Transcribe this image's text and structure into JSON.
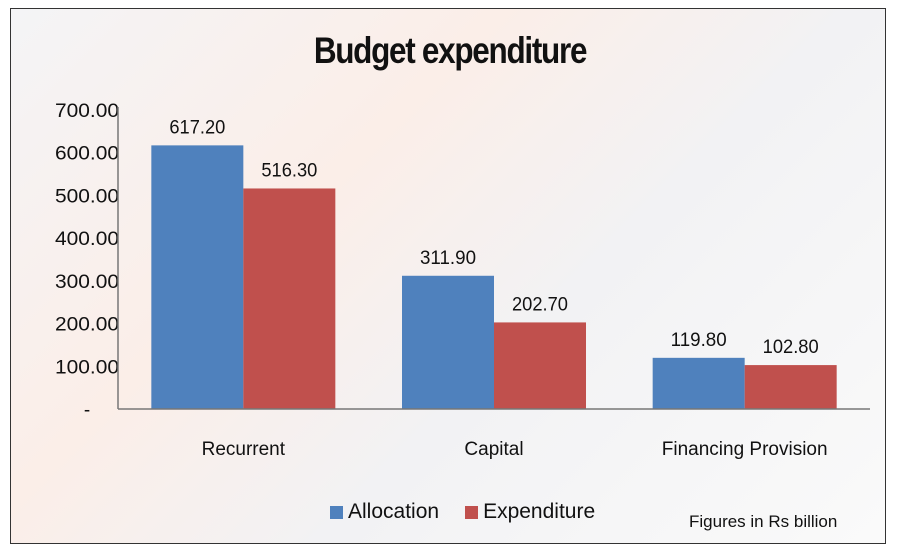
{
  "chart_data": {
    "type": "bar",
    "title": "Budget expenditure",
    "categories": [
      "Recurrent",
      "Capital",
      "Financing  Provision"
    ],
    "series": [
      {
        "name": "Allocation",
        "values": [
          617.2,
          311.9,
          119.8
        ],
        "color": "#4f81bd",
        "labels": [
          "617.20",
          "311.90",
          "119.80"
        ]
      },
      {
        "name": "Expenditure",
        "values": [
          516.3,
          202.7,
          102.8
        ],
        "color": "#c0504d",
        "labels": [
          "516.30",
          "202.70",
          "102.80"
        ]
      }
    ],
    "ylim": [
      0,
      700
    ],
    "yticks": [
      0,
      100,
      200,
      300,
      400,
      500,
      600,
      700
    ],
    "ytick_labels": [
      "-",
      "100.00",
      "200.00",
      "300.00",
      "400.00",
      "500.00",
      "600.00",
      "700.00"
    ],
    "grid": false,
    "legend_position": "bottom",
    "note": "Figures in Rs billion"
  }
}
